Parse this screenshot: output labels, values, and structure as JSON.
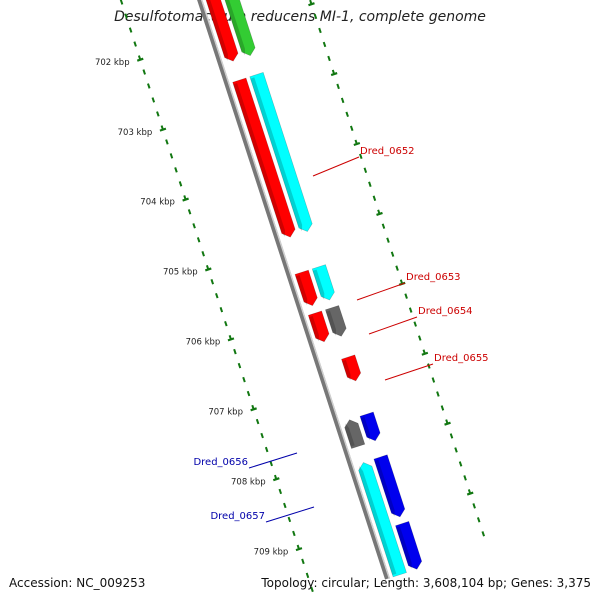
{
  "title": "Desulfotomaculum reducens MI-1, complete genome",
  "footer": {
    "accession": "Accession: NC_009253",
    "summary": "Topology: circular; Length: 3,608,104 bp; Genes: 3,375"
  },
  "colors": {
    "red": "#ff0000",
    "cyan": "#00ffff",
    "green": "#33cc33",
    "blue": "#0000ee",
    "gray": "#666666",
    "tick": "#117711",
    "label_red": "#cc0000",
    "label_blue": "#0000aa",
    "backbone": "#888888"
  },
  "kbp_ticks": [
    {
      "value": 702,
      "label": "702 kbp"
    },
    {
      "value": 703,
      "label": "703 kbp"
    },
    {
      "value": 704,
      "label": "704 kbp"
    },
    {
      "value": 705,
      "label": "705 kbp"
    },
    {
      "value": 706,
      "label": "706 kbp"
    },
    {
      "value": 707,
      "label": "707 kbp"
    },
    {
      "value": 708,
      "label": "708 kbp"
    },
    {
      "value": 709,
      "label": "709 kbp"
    }
  ],
  "feature_labels": [
    {
      "name": "Dred_0652",
      "color": "label_red"
    },
    {
      "name": "Dred_0653",
      "color": "label_red"
    },
    {
      "name": "Dred_0654",
      "color": "label_red"
    },
    {
      "name": "Dred_0655",
      "color": "label_red"
    },
    {
      "name": "Dred_0656",
      "color": "label_blue"
    },
    {
      "name": "Dred_0657",
      "color": "label_blue"
    }
  ]
}
